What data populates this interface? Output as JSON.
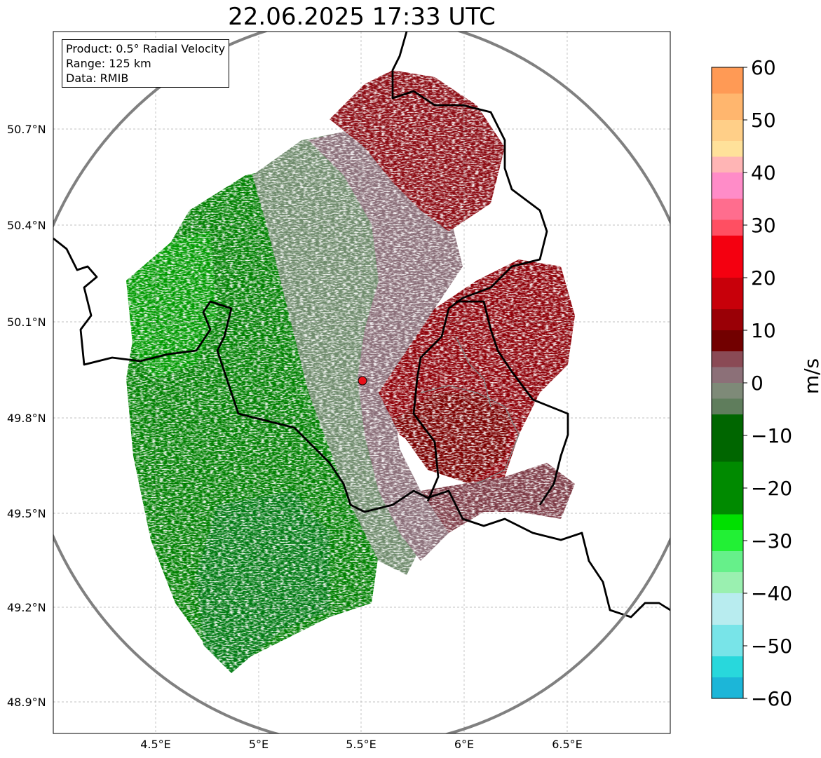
{
  "title": "22.06.2025 17:33 UTC",
  "info_box": {
    "product": "Product: 0.5° Radial Velocity",
    "range": "Range: 125 km",
    "data": "Data: RMIB"
  },
  "axes": {
    "lat_ticks": [
      "50.7°N",
      "50.4°N",
      "50.1°N",
      "49.8°N",
      "49.5°N",
      "49.2°N",
      "48.9°N"
    ],
    "lon_ticks": [
      "4.5°E",
      "5°E",
      "5.5°E",
      "6°E",
      "6.5°E"
    ]
  },
  "colorbar": {
    "label": "m/s",
    "ticks": [
      "60",
      "50",
      "40",
      "30",
      "20",
      "10",
      "0",
      "−10",
      "−20",
      "−30",
      "−40",
      "−50",
      "−60"
    ],
    "range": [
      -60,
      60
    ],
    "stops": [
      {
        "v": 60,
        "c": "#ff9a55"
      },
      {
        "v": 55,
        "c": "#ffb66e"
      },
      {
        "v": 50,
        "c": "#ffcf88"
      },
      {
        "v": 46,
        "c": "#ffe19a"
      },
      {
        "v": 43,
        "c": "#ffb5b5"
      },
      {
        "v": 40,
        "c": "#ff8cc8"
      },
      {
        "v": 35,
        "c": "#ff6d8e"
      },
      {
        "v": 31,
        "c": "#ff4f62"
      },
      {
        "v": 28,
        "c": "#f40010"
      },
      {
        "v": 20,
        "c": "#c8000a"
      },
      {
        "v": 14,
        "c": "#9a0006"
      },
      {
        "v": 10,
        "c": "#720000"
      },
      {
        "v": 6,
        "c": "#8a4a55"
      },
      {
        "v": 3,
        "c": "#8c7078"
      },
      {
        "v": 0,
        "c": "#7e8a78"
      },
      {
        "v": -3,
        "c": "#5f7d5c"
      },
      {
        "v": -6,
        "c": "#006600"
      },
      {
        "v": -15,
        "c": "#008a00"
      },
      {
        "v": -25,
        "c": "#00e000"
      },
      {
        "v": -28,
        "c": "#22f035"
      },
      {
        "v": -32,
        "c": "#66f08a"
      },
      {
        "v": -36,
        "c": "#9af0b0"
      },
      {
        "v": -40,
        "c": "#b8ecef"
      },
      {
        "v": -46,
        "c": "#78e4e8"
      },
      {
        "v": -52,
        "c": "#28d8dc"
      },
      {
        "v": -56,
        "c": "#1cb6d8"
      },
      {
        "v": -60,
        "c": "#1f7cc4"
      }
    ]
  },
  "map": {
    "radar_site": {
      "lon": 5.5,
      "lat": 49.92
    },
    "lon_range": [
      4.0,
      7.0
    ],
    "lat_range": [
      48.8,
      51.0
    ],
    "range_ring_km": 125
  }
}
